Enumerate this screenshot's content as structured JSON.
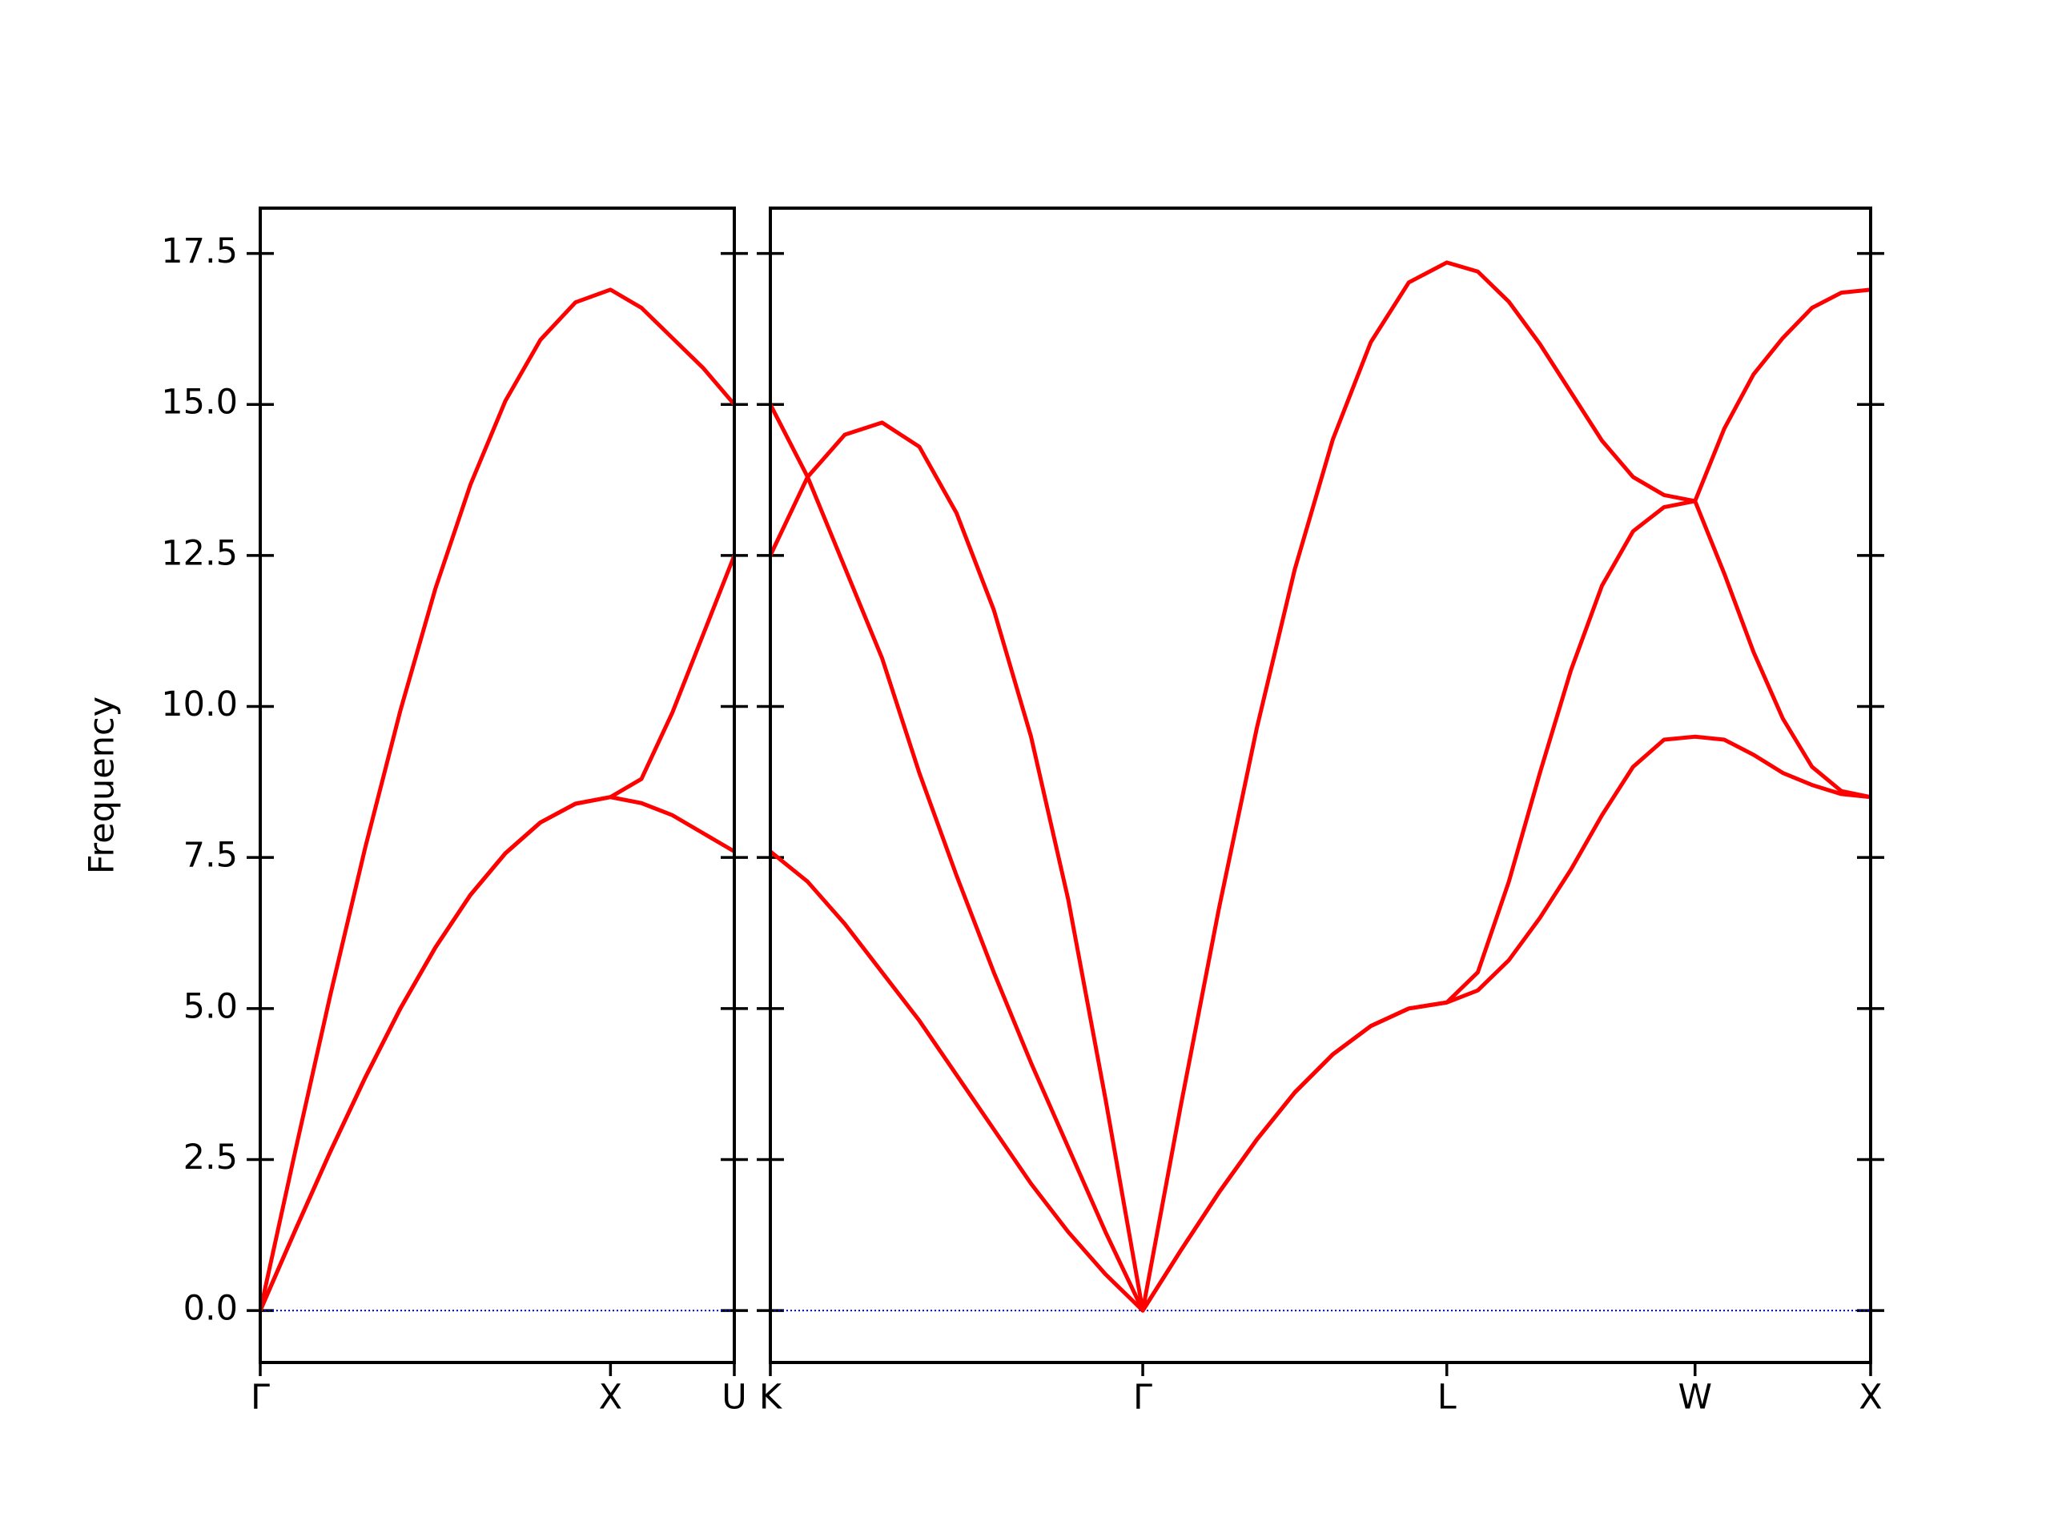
{
  "chart_data": [
    {
      "type": "line",
      "ylabel": "Frequency",
      "show_ytick_labels": true,
      "x": [
        0,
        0.1,
        0.2,
        0.3,
        0.4,
        0.5,
        0.6,
        0.7,
        0.8,
        0.9,
        1.0,
        1.0884,
        1.1768,
        1.2652,
        1.3536
      ],
      "xlim": [
        0,
        1.3536
      ],
      "xticks": [
        {
          "value": 0,
          "label": "Γ"
        },
        {
          "value": 1.0,
          "label": "X"
        },
        {
          "value": 1.3536,
          "label": "U"
        }
      ],
      "ylim": [
        -0.86,
        18.25
      ],
      "yticks": [
        {
          "value": 0,
          "label": "0.0"
        },
        2.5,
        {
          "value": 5,
          "label": "5.0"
        },
        7.5,
        {
          "value": 10,
          "label": "10.0"
        },
        12.5,
        {
          "value": 15,
          "label": "15.0"
        },
        17.5
      ],
      "reference_line": {
        "value": 0,
        "color": "#0000cc"
      },
      "series": [
        {
          "color": "#ff0000",
          "values": [
            0,
            1.33,
            2.63,
            3.86,
            5.0,
            6.01,
            6.88,
            7.57,
            8.08,
            8.39,
            8.5,
            8.4,
            8.2,
            7.9,
            7.6
          ]
        },
        {
          "color": "#ff0000",
          "values": [
            0,
            1.33,
            2.63,
            3.86,
            5.0,
            6.01,
            6.88,
            7.57,
            8.08,
            8.39,
            8.5,
            8.8,
            9.9,
            11.2,
            12.5
          ]
        },
        {
          "color": "#ff0000",
          "values": [
            0,
            2.64,
            5.22,
            7.67,
            9.93,
            11.95,
            13.67,
            15.06,
            16.07,
            16.69,
            16.9,
            16.6,
            16.1,
            15.6,
            15.0
          ]
        }
      ]
    },
    {
      "type": "line",
      "show_ytick_labels": false,
      "x": [
        0,
        0.1061,
        0.2121,
        0.3182,
        0.4243,
        0.5304,
        0.6364,
        0.7425,
        0.8486,
        0.9546,
        1.0607,
        1.169,
        1.2772,
        1.3855,
        1.4937,
        1.602,
        1.7102,
        1.8185,
        1.9267,
        2.0151,
        2.1035,
        2.1919,
        2.2803,
        2.3687,
        2.4571,
        2.5455,
        2.6338,
        2.7171,
        2.8005,
        2.8838,
        2.9671,
        3.0505,
        3.1339
      ],
      "xlim": [
        0,
        3.1339
      ],
      "xticks": [
        {
          "value": 0,
          "label": "K"
        },
        {
          "value": 1.0607,
          "label": "Γ"
        },
        {
          "value": 1.9267,
          "label": "L"
        },
        {
          "value": 2.6338,
          "label": "W"
        },
        {
          "value": 3.1339,
          "label": "X"
        }
      ],
      "ylim": [
        -0.86,
        18.25
      ],
      "yticks": [
        0,
        2.5,
        5,
        7.5,
        10,
        12.5,
        15,
        17.5
      ],
      "reference_line": {
        "value": 0,
        "color": "#0000cc"
      },
      "series": [
        {
          "color": "#ff0000",
          "values": [
            12.5,
            13.8,
            14.5,
            14.7,
            14.3,
            13.2,
            11.6,
            9.5,
            6.8,
            3.5,
            0,
            3.39,
            6.64,
            9.64,
            12.27,
            14.42,
            16.03,
            17.02,
            17.35,
            17.2,
            16.7,
            16.0,
            15.2,
            14.4,
            13.8,
            13.5,
            13.4,
            12.2,
            10.9,
            9.8,
            9.0,
            8.6,
            8.5
          ]
        },
        {
          "color": "#ff0000",
          "values": [
            15.0,
            13.8,
            12.3,
            10.8,
            8.9,
            7.2,
            5.6,
            4.1,
            2.7,
            1.3,
            0,
            0.995,
            1.95,
            2.83,
            3.61,
            4.24,
            4.71,
            5.0,
            5.1,
            5.6,
            7.1,
            8.9,
            10.6,
            12.0,
            12.9,
            13.3,
            13.4,
            14.6,
            15.5,
            16.1,
            16.6,
            16.85,
            16.9
          ]
        },
        {
          "color": "#ff0000",
          "values": [
            7.6,
            7.1,
            6.4,
            5.6,
            4.8,
            3.9,
            3.0,
            2.1,
            1.3,
            0.6,
            0,
            0.995,
            1.95,
            2.83,
            3.61,
            4.24,
            4.71,
            5.0,
            5.1,
            5.3,
            5.8,
            6.5,
            7.3,
            8.2,
            9.0,
            9.45,
            9.5,
            9.45,
            9.2,
            8.9,
            8.7,
            8.55,
            8.5
          ]
        }
      ]
    }
  ]
}
